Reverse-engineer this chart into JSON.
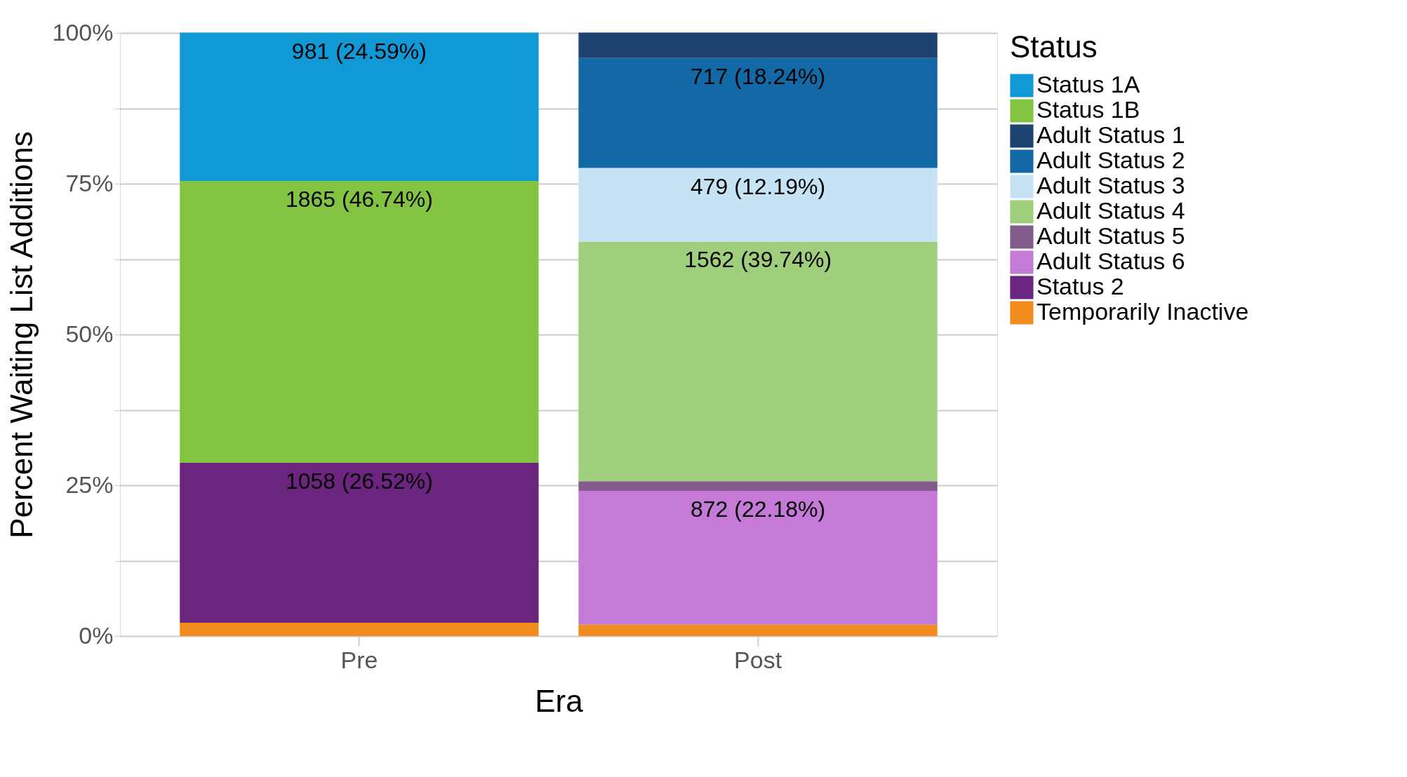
{
  "chart_data": {
    "type": "bar",
    "stacked": true,
    "xlabel": "Era",
    "ylabel": "Percent Waiting List Additions",
    "legend_title": "Status",
    "legend": "right",
    "grid": true,
    "categories": [
      "Pre",
      "Post"
    ],
    "ylim": [
      0,
      100
    ],
    "yticks": [
      {
        "value": 0,
        "label": "0%"
      },
      {
        "value": 12.5,
        "label": null
      },
      {
        "value": 25,
        "label": "25%"
      },
      {
        "value": 37.5,
        "label": null
      },
      {
        "value": 50,
        "label": "50%"
      },
      {
        "value": 62.5,
        "label": null
      },
      {
        "value": 75,
        "label": "75%"
      },
      {
        "value": 87.5,
        "label": null
      },
      {
        "value": 100,
        "label": "100%"
      }
    ],
    "series": [
      {
        "name": "Temporarily Inactive",
        "color": "#f28c1c",
        "values": [
          2.2,
          1.9
        ],
        "value_labels": [
          null,
          null
        ]
      },
      {
        "name": "Status 2",
        "color": "#6c257f",
        "values": [
          26.52,
          null
        ],
        "value_labels": [
          "1058 (26.52%)",
          null
        ]
      },
      {
        "name": "Adult Status 6",
        "color": "#c47ad6",
        "values": [
          null,
          22.18
        ],
        "value_labels": [
          null,
          "872 (22.18%)"
        ]
      },
      {
        "name": "Adult Status 5",
        "color": "#835a8c",
        "values": [
          null,
          1.6
        ],
        "value_labels": [
          null,
          null
        ]
      },
      {
        "name": "Adult Status 4",
        "color": "#9fcf7d",
        "values": [
          null,
          39.74
        ],
        "value_labels": [
          null,
          "1562 (39.74%)"
        ]
      },
      {
        "name": "Adult Status 3",
        "color": "#c5e3f5",
        "values": [
          null,
          12.19
        ],
        "value_labels": [
          null,
          "479 (12.19%)"
        ]
      },
      {
        "name": "Adult Status 2",
        "color": "#1269a5",
        "values": [
          null,
          18.24
        ],
        "value_labels": [
          null,
          "717 (18.24%)"
        ]
      },
      {
        "name": "Adult Status 1",
        "color": "#1d4370",
        "values": [
          null,
          4.2
        ],
        "value_labels": [
          null,
          null
        ]
      },
      {
        "name": "Status 1B",
        "color": "#82c341",
        "values": [
          46.74,
          null
        ],
        "value_labels": [
          "1865 (46.74%)",
          null
        ]
      },
      {
        "name": "Status 1A",
        "color": "#1199d6",
        "values": [
          24.59,
          null
        ],
        "value_labels": [
          "981 (24.59%)",
          null
        ]
      }
    ]
  }
}
